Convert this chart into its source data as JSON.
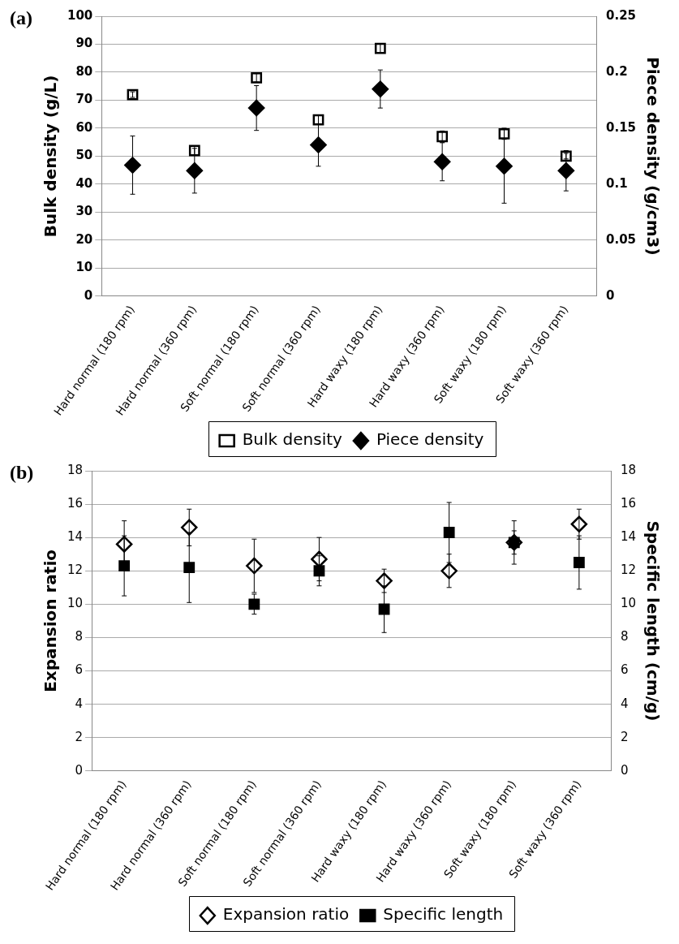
{
  "chart_data": [
    {
      "type": "scatter",
      "annotations": [
        "(a)"
      ],
      "ylabel": "Bulk density (g/L)",
      "y2label": "Piece density (g/cm3)",
      "categories": [
        "Hard normal (180 rpm)",
        "Hard normal (360 rpm)",
        "Soft normal (180 rpm)",
        "Soft normal (360 rpm)",
        "Hard waxy (180 rpm)",
        "Hard waxy (360 rpm)",
        "Soft waxy (180 rpm)",
        "Soft waxy (360 rpm)"
      ],
      "series": [
        {
          "name": "Bulk density",
          "color": "#ffffff",
          "marker": "square",
          "values": [
            72,
            52,
            78,
            63,
            88.5,
            57,
            58,
            50
          ],
          "errors": [
            1,
            1.5,
            1.5,
            1.5,
            1.5,
            2,
            2,
            1
          ]
        },
        {
          "name": "Piece density",
          "color": "#000000",
          "marker": "diamond",
          "axis": "y2",
          "values": [
            0.117,
            0.112,
            0.168,
            0.135,
            0.185,
            0.12,
            0.116,
            0.112
          ],
          "errors": [
            0.026,
            0.02,
            0.02,
            0.019,
            0.017,
            0.017,
            0.033,
            0.018
          ]
        }
      ],
      "ylim": [
        0,
        100
      ],
      "yticks": [
        0,
        10,
        20,
        30,
        40,
        50,
        60,
        70,
        80,
        90,
        100
      ],
      "y2lim": [
        0,
        0.25
      ],
      "y2ticks": [
        0,
        0.05,
        0.1,
        0.15,
        0.2,
        0.25
      ],
      "grid": "y",
      "legend": "bottom"
    },
    {
      "type": "scatter",
      "annotations": [
        "(b)"
      ],
      "ylabel": "Expansion ratio",
      "y2label": "Specific length (cm/g)",
      "categories": [
        "Hard normal (180 rpm)",
        "Hard normal (360 rpm)",
        "Soft normal (180 rpm)",
        "Soft normal (360 rpm)",
        "Hard waxy (180 rpm)",
        "Hard waxy (360 rpm)",
        "Soft waxy (180 rpm)",
        "Soft waxy (360 rpm)"
      ],
      "series": [
        {
          "name": "Expansion ratio",
          "color": "#ffffff",
          "marker": "diamond",
          "values": [
            13.6,
            14.6,
            12.3,
            12.7,
            11.4,
            12.0,
            13.7,
            14.8
          ],
          "errors": [
            1.4,
            1.1,
            1.6,
            1.3,
            0.7,
            1.0,
            1.3,
            0.9
          ]
        },
        {
          "name": "Specific length",
          "color": "#000000",
          "marker": "square",
          "axis": "y2",
          "values": [
            12.3,
            12.2,
            10.0,
            12.0,
            9.7,
            14.3,
            13.7,
            12.5
          ],
          "errors": [
            1.8,
            2.1,
            0.6,
            0.9,
            1.4,
            1.8,
            0.7,
            1.6
          ]
        }
      ],
      "ylim": [
        0,
        18
      ],
      "yticks": [
        0,
        2,
        4,
        6,
        8,
        10,
        12,
        14,
        16,
        18
      ],
      "y2lim": [
        0,
        18
      ],
      "y2ticks": [
        0,
        2,
        4,
        6,
        8,
        10,
        12,
        14,
        16,
        18
      ],
      "grid": "y",
      "legend": "bottom"
    }
  ]
}
